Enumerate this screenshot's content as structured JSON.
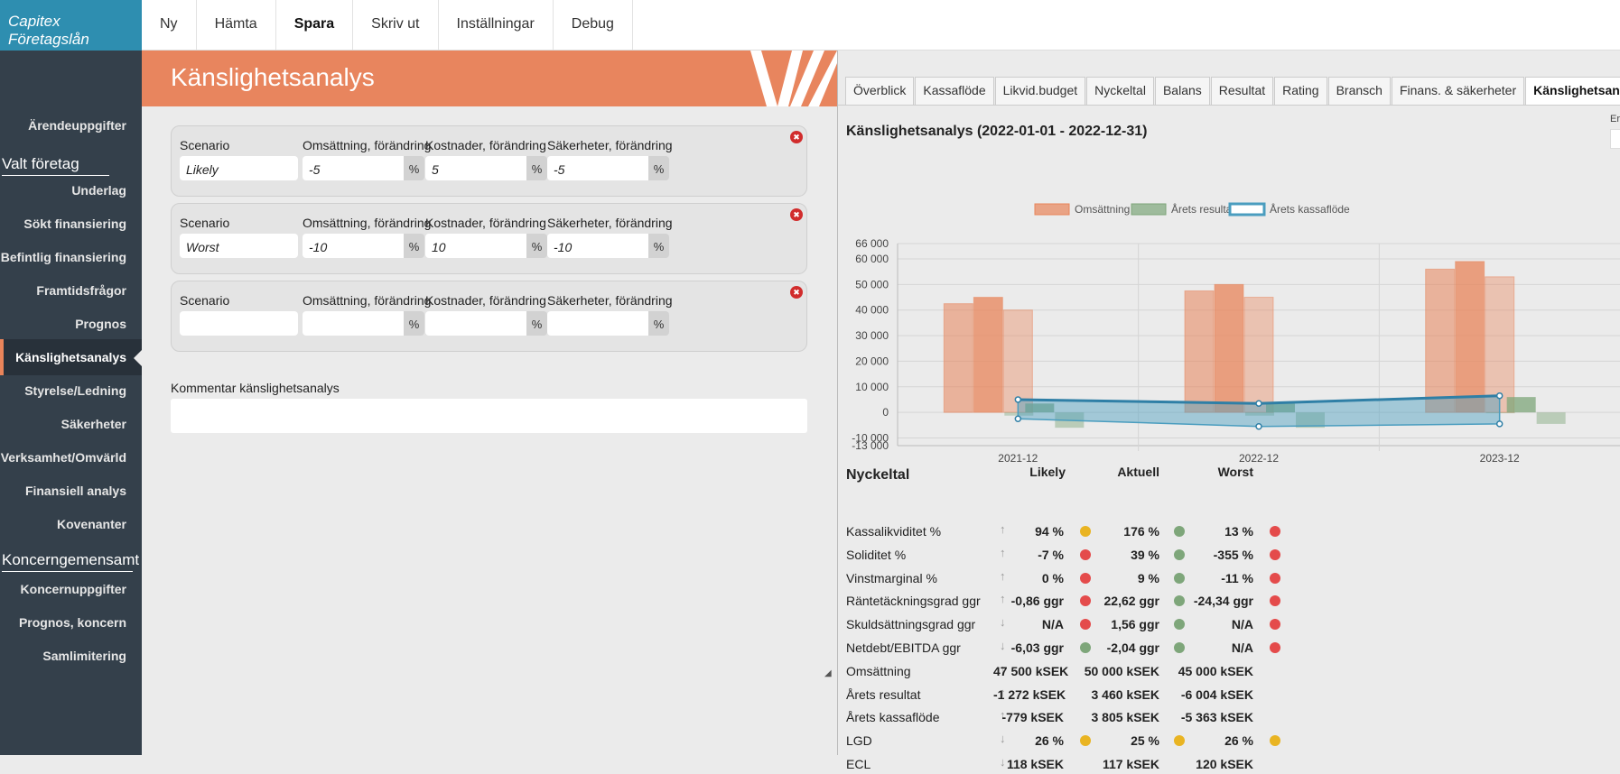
{
  "app": {
    "brand": "Capitex Företagslån"
  },
  "topnav": [
    "Ny",
    "Hämta",
    "Spara",
    "Skriv ut",
    "Inställningar",
    "Debug"
  ],
  "sidebar": {
    "items_top": [
      "Ärendeuppgifter"
    ],
    "section1": "Valt företag",
    "items1": [
      "Underlag",
      "Sökt finansiering",
      "Befintlig finansiering",
      "Framtidsfrågor",
      "Prognos",
      "Känslighetsanalys",
      "Styrelse/Ledning",
      "Säkerheter",
      "Verksamhet/Omvärld",
      "Finansiell analys",
      "Kovenanter"
    ],
    "active": "Känslighetsanalys",
    "section2": "Koncerngemensamt",
    "items2": [
      "Koncernuppgifter",
      "Prognos, koncern",
      "Samlimitering"
    ]
  },
  "page": {
    "title": "Känslighetsanalys"
  },
  "scenario_form": {
    "labels": {
      "scenario": "Scenario",
      "oms": "Omsättning, förändring",
      "kost": "Kostnader, förändring",
      "sak": "Säkerheter, förändring",
      "pct": "%"
    },
    "rows": [
      {
        "scenario": "Likely",
        "oms": "-5",
        "kost": "5",
        "sak": "-5"
      },
      {
        "scenario": "Worst",
        "oms": "-10",
        "kost": "10",
        "sak": "-10"
      },
      {
        "scenario": "",
        "oms": "",
        "kost": "",
        "sak": ""
      }
    ],
    "delete_icon": "trash-icon"
  },
  "comment": {
    "label": "Kommentar känslighetsanalys",
    "value": ""
  },
  "right_panel": {
    "tabs": [
      "Överblick",
      "Kassaflöde",
      "Likvid.budget",
      "Nyckeltal",
      "Balans",
      "Resultat",
      "Rating",
      "Bransch",
      "Finans. & säkerheter",
      "Känslighetsanalys"
    ],
    "active_tab": "Känslighetsanalys",
    "title": "Känslighetsanalys (2022-01-01 - 2022-12-31)",
    "er_label": "Er"
  },
  "chart_data": {
    "type": "bar",
    "categories": [
      "2021-12",
      "2022-12",
      "2023-12"
    ],
    "legend": [
      "Omsättning",
      "Årets resultat",
      "Årets kassaflöde"
    ],
    "legend_position": "top",
    "y_ticks": [
      "66 000",
      "60 000",
      "50 000",
      "40 000",
      "30 000",
      "20 000",
      "10 000",
      "0",
      "-10 000",
      "-13 000"
    ],
    "ylim": [
      -13000,
      66000
    ],
    "grid": true,
    "colors": {
      "oms": "#e8845a",
      "res": "#7ea67a",
      "kas": "#4a9dbf"
    },
    "series": [
      {
        "name": "Omsättning",
        "values": [
          [
            42500,
            45000,
            40000
          ],
          [
            47500,
            50000,
            45000
          ],
          [
            56000,
            59000,
            53000
          ]
        ]
      },
      {
        "name": "Årets resultat",
        "values": [
          [
            -1272,
            3460,
            -6004
          ],
          [
            -1272,
            3460,
            -6004
          ],
          [
            0,
            6000,
            -4500
          ]
        ]
      },
      {
        "name": "Årets kassaflöde",
        "values": [
          [
            5000,
            -2500
          ],
          [
            3500,
            -5500
          ],
          [
            6500,
            -4500
          ]
        ]
      }
    ]
  },
  "kpi": {
    "title": "Nyckeltal",
    "columns": [
      "Likely",
      "Aktuell",
      "Worst"
    ],
    "rows": [
      {
        "name": "Kassalikviditet %",
        "dir": "up",
        "v": [
          "94 %",
          "176 %",
          "13 %"
        ],
        "d": [
          "y",
          "g",
          "r"
        ]
      },
      {
        "name": "Soliditet %",
        "dir": "up",
        "v": [
          "-7 %",
          "39 %",
          "-355 %"
        ],
        "d": [
          "r",
          "g",
          "r"
        ]
      },
      {
        "name": "Vinstmarginal %",
        "dir": "up",
        "v": [
          "0 %",
          "9 %",
          "-11 %"
        ],
        "d": [
          "r",
          "g",
          "r"
        ]
      },
      {
        "name": "Räntetäckningsgrad ggr",
        "dir": "up",
        "v": [
          "-0,86 ggr",
          "22,62 ggr",
          "-24,34 ggr"
        ],
        "d": [
          "r",
          "g",
          "r"
        ]
      },
      {
        "name": "Skuldsättningsgrad ggr",
        "dir": "down",
        "v": [
          "N/A",
          "1,56 ggr",
          "N/A"
        ],
        "d": [
          "r",
          "g",
          "r"
        ]
      },
      {
        "name": "Netdebt/EBITDA ggr",
        "dir": "down",
        "v": [
          "-6,03 ggr",
          "-2,04 ggr",
          "N/A"
        ],
        "d": [
          "g",
          "g",
          "r"
        ]
      },
      {
        "name": "Omsättning",
        "dir": "up",
        "v": [
          "47 500 kSEK",
          "50 000 kSEK",
          "45 000 kSEK"
        ],
        "d": [
          "",
          "",
          ""
        ]
      },
      {
        "name": "Årets resultat",
        "dir": "up",
        "v": [
          "-1 272 kSEK",
          "3 460 kSEK",
          "-6 004 kSEK"
        ],
        "d": [
          "",
          "",
          ""
        ]
      },
      {
        "name": "Årets kassaflöde",
        "dir": "up",
        "v": [
          "-779 kSEK",
          "3 805 kSEK",
          "-5 363 kSEK"
        ],
        "d": [
          "",
          "",
          ""
        ]
      },
      {
        "name": "LGD",
        "dir": "down",
        "v": [
          "26 %",
          "25 %",
          "26 %"
        ],
        "d": [
          "y",
          "y",
          "y"
        ]
      },
      {
        "name": "ECL",
        "dir": "down",
        "v": [
          "118 kSEK",
          "117 kSEK",
          "120 kSEK"
        ],
        "d": [
          "",
          "",
          ""
        ]
      }
    ]
  }
}
